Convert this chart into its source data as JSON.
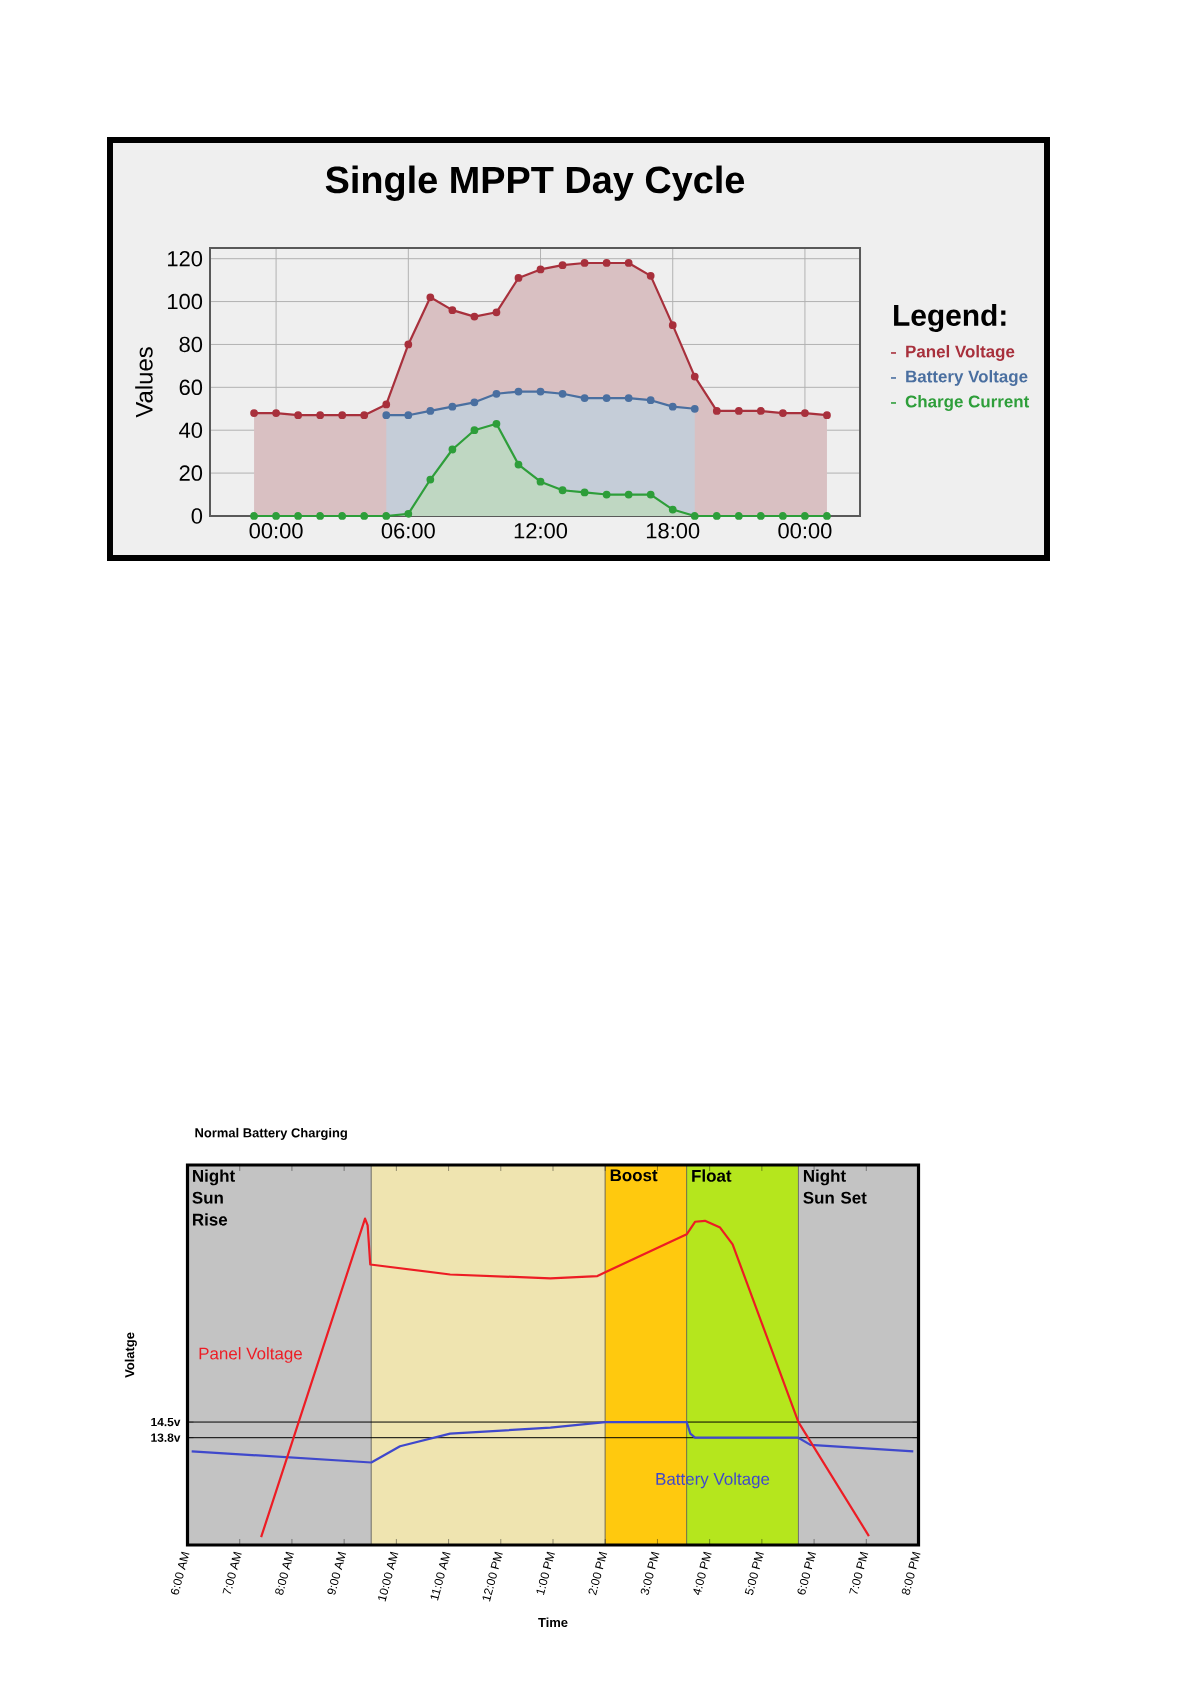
{
  "chart_data": [
    {
      "type": "area",
      "title": "Single MPPT Day Cycle",
      "ylabel": "Values",
      "legend_title": "Legend:",
      "legend": "right",
      "marker": "circle",
      "grid": true,
      "x": [
        -1,
        0,
        1,
        2,
        3,
        4,
        5,
        6,
        7,
        8,
        9,
        10,
        11,
        12,
        13,
        14,
        15,
        16,
        17,
        18,
        19,
        20,
        21,
        22,
        23,
        24,
        25
      ],
      "xlim": [
        -3,
        26.5
      ],
      "xticks": [
        {
          "value": 0,
          "label": "00:00"
        },
        {
          "value": 6,
          "label": "06:00"
        },
        {
          "value": 12,
          "label": "12:00"
        },
        {
          "value": 18,
          "label": "18:00"
        },
        {
          "value": 24,
          "label": "00:00"
        }
      ],
      "ylim": [
        0,
        125
      ],
      "yticks": [
        0,
        20,
        40,
        60,
        80,
        100,
        120
      ],
      "series": [
        {
          "name": "Panel Voltage",
          "color": "#a8303c",
          "values": [
            48,
            48,
            47,
            47,
            47,
            47,
            52,
            80,
            102,
            96,
            93,
            95,
            111,
            115,
            117,
            118,
            118,
            118,
            112,
            89,
            65,
            49,
            49,
            49,
            48,
            48,
            47
          ]
        },
        {
          "name": "Battery Voltage",
          "color": "#4a6fa0",
          "values": [
            null,
            null,
            null,
            null,
            null,
            null,
            47,
            47,
            49,
            51,
            53,
            57,
            58,
            58,
            57,
            55,
            55,
            55,
            54,
            51,
            50,
            null,
            null,
            null,
            null,
            null,
            null
          ]
        },
        {
          "name": "Charge Current",
          "color": "#2e9e3a",
          "values": [
            0,
            0,
            0,
            0,
            0,
            0,
            0,
            1,
            17,
            31,
            40,
            43,
            24,
            16,
            12,
            11,
            10,
            10,
            10,
            3,
            0,
            0,
            0,
            0,
            0,
            0,
            0
          ]
        }
      ]
    },
    {
      "type": "line",
      "title": "Normal Battery Charging",
      "xlabel": "Time",
      "ylabel": "Volatge",
      "marker": "none",
      "line_style": "solid",
      "xlim": [
        6,
        20
      ],
      "xticks": [
        {
          "value": 6,
          "label": "6:00 AM"
        },
        {
          "value": 7,
          "label": "7:00 AM"
        },
        {
          "value": 8,
          "label": "8:00 AM"
        },
        {
          "value": 9,
          "label": "9:00 AM"
        },
        {
          "value": 10,
          "label": "10:00 AM"
        },
        {
          "value": 11,
          "label": "11:00 AM"
        },
        {
          "value": 12,
          "label": "12:00 PM"
        },
        {
          "value": 13,
          "label": "1:00 PM"
        },
        {
          "value": 14,
          "label": "2:00 PM"
        },
        {
          "value": 15,
          "label": "3:00 PM"
        },
        {
          "value": 16,
          "label": "4:00 PM"
        },
        {
          "value": 17,
          "label": "5:00 PM"
        },
        {
          "value": 18,
          "label": "6:00 PM"
        },
        {
          "value": 19,
          "label": "7:00 PM"
        },
        {
          "value": 20,
          "label": "8:00 PM"
        }
      ],
      "ylim": [
        9,
        26
      ],
      "yticks": [
        {
          "value": 13.8,
          "label": "13.8v"
        },
        {
          "value": 14.5,
          "label": "14.5v"
        }
      ],
      "bands": [
        {
          "axis": "x",
          "from": 6,
          "to": 9.52,
          "label": "Night Sun Rise",
          "color": "#c3c3c3"
        },
        {
          "axis": "x",
          "from": 9.52,
          "to": 14.0,
          "color": "#efe4b0"
        },
        {
          "axis": "x",
          "from": 14.0,
          "to": 15.56,
          "label": "Boost",
          "color": "#ffc90e"
        },
        {
          "axis": "x",
          "from": 15.56,
          "to": 17.7,
          "label": "Float",
          "color": "#b5e61d"
        },
        {
          "axis": "x",
          "from": 17.7,
          "to": 20,
          "label": "Night Sun Set",
          "color": "#c3c3c3"
        }
      ],
      "ref_lines": [
        {
          "axis": "y",
          "value": 14.5,
          "color": "#000000"
        },
        {
          "axis": "y",
          "value": 13.8,
          "color": "#000000"
        }
      ],
      "series": [
        {
          "name": "Panel Voltage",
          "color": "#ed1c24",
          "x": [
            7.41,
            9.4,
            9.45,
            9.5,
            11.03,
            12.95,
            13.85,
            14.0,
            15.56,
            15.72,
            15.91,
            16.2,
            16.44,
            17.7,
            19.05
          ],
          "values": [
            9.35,
            23.6,
            23.3,
            21.55,
            21.1,
            20.93,
            21.03,
            21.2,
            22.9,
            23.46,
            23.5,
            23.2,
            22.45,
            14.5,
            9.4
          ]
        },
        {
          "name": "Battery Voltage",
          "color": "#3f48cc",
          "x": [
            6.08,
            9.52,
            10.07,
            11.03,
            12.95,
            14.0,
            15.56,
            15.63,
            15.72,
            17.7,
            17.93,
            19.9
          ],
          "values": [
            13.19,
            12.69,
            13.42,
            13.98,
            14.25,
            14.5,
            14.5,
            13.98,
            13.8,
            13.8,
            13.48,
            13.19
          ]
        }
      ]
    }
  ]
}
